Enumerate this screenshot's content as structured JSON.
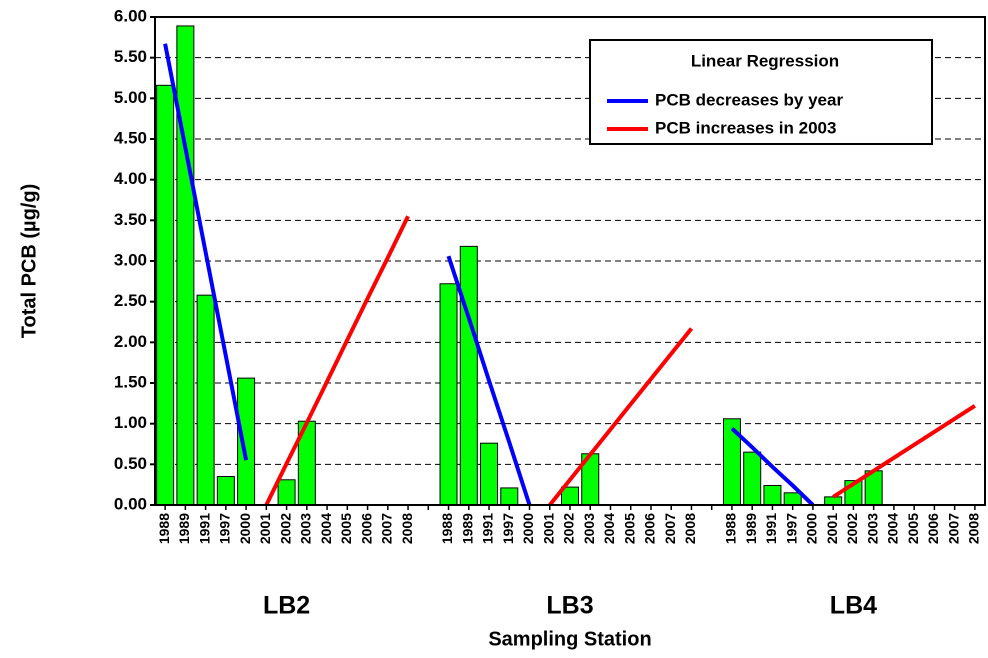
{
  "chart_data": {
    "type": "bar",
    "y_label": "Total PCB (µg/g)",
    "x_label": "Sampling Station",
    "categories": [
      "1988",
      "1989",
      "1991",
      "1997",
      "2000",
      "2001",
      "2002",
      "2003",
      "2004",
      "2005",
      "2006",
      "2007",
      "2008",
      null,
      "1988",
      "1989",
      "1991",
      "1997",
      "2000",
      "2001",
      "2002",
      "2003",
      "2004",
      "2005",
      "2006",
      "2007",
      "2008",
      null,
      "1988",
      "1989",
      "1991",
      "1997",
      "2000",
      "2001",
      "2002",
      "2003",
      "2004",
      "2005",
      "2006",
      "2007",
      "2008"
    ],
    "group_labels": [
      "LB2",
      "LB3",
      "LB4"
    ],
    "values": [
      5.16,
      5.89,
      2.58,
      0.35,
      1.56,
      null,
      0.31,
      1.03,
      null,
      null,
      null,
      null,
      null,
      null,
      2.72,
      3.18,
      0.76,
      0.21,
      null,
      null,
      0.22,
      0.63,
      null,
      null,
      null,
      null,
      null,
      null,
      1.06,
      0.65,
      0.24,
      0.15,
      null,
      0.1,
      0.3,
      0.42,
      null,
      null,
      null,
      null,
      null
    ],
    "color": "#00ff00",
    "legend_title": "Linear Regression",
    "series": [
      {
        "name": "PCB decreases by year",
        "color": "#0000ff",
        "values": [
          5.67,
          4.39,
          3.11,
          1.83,
          0.55,
          null,
          null,
          null,
          null,
          null,
          null,
          null,
          null,
          null,
          3.06,
          2.3,
          1.53,
          0.77,
          0,
          null,
          null,
          null,
          null,
          null,
          null,
          null,
          null,
          null,
          0.94,
          0.71,
          0.47,
          0.24,
          0,
          null,
          null,
          null,
          null,
          null,
          null,
          null,
          null
        ]
      },
      {
        "name": "PCB increases in 2003",
        "color": "#ff0000",
        "values": [
          null,
          null,
          null,
          null,
          null,
          0,
          0.51,
          1.01,
          1.52,
          2.03,
          2.54,
          3.04,
          3.55,
          null,
          null,
          null,
          null,
          null,
          null,
          0,
          0.31,
          0.62,
          0.93,
          1.24,
          1.55,
          1.86,
          2.17,
          null,
          null,
          null,
          null,
          null,
          null,
          0.1,
          0.26,
          0.42,
          0.58,
          0.74,
          0.9,
          1.06,
          1.22
        ]
      }
    ],
    "ylim": [
      0,
      6
    ],
    "yticks": [
      {
        "value": 0,
        "label": "0.00"
      },
      {
        "value": 0.5,
        "label": "0.50"
      },
      {
        "value": 1,
        "label": "1.00"
      },
      {
        "value": 1.5,
        "label": "1.50"
      },
      {
        "value": 2,
        "label": "2.00"
      },
      {
        "value": 2.5,
        "label": "2.50"
      },
      {
        "value": 3,
        "label": "3.00"
      },
      {
        "value": 3.5,
        "label": "3.50"
      },
      {
        "value": 4,
        "label": "4.00"
      },
      {
        "value": 4.5,
        "label": "4.50"
      },
      {
        "value": 5,
        "label": "5.00"
      },
      {
        "value": 5.5,
        "label": "5.50"
      },
      {
        "value": 6,
        "label": "6.00"
      }
    ],
    "grid": true
  }
}
